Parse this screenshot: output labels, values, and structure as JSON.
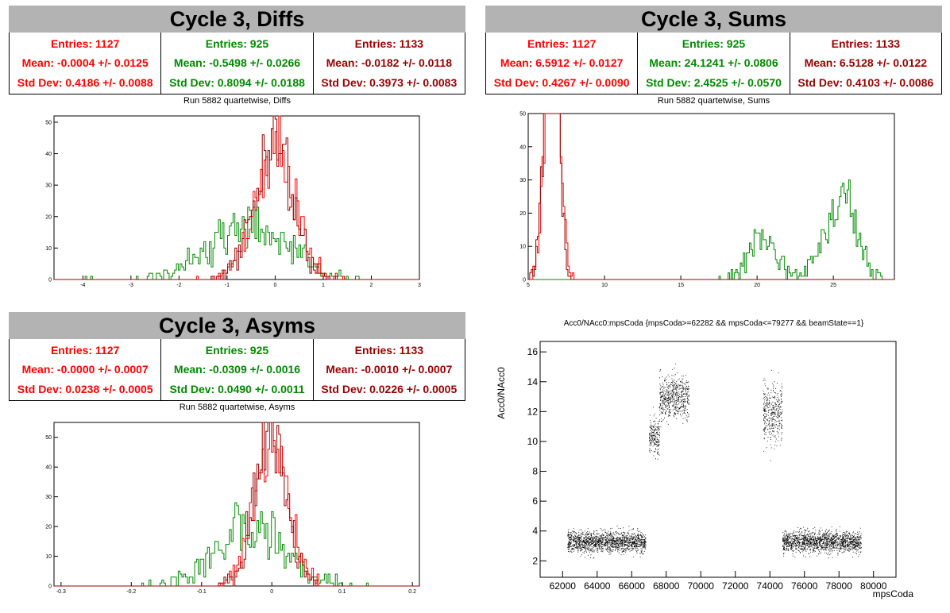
{
  "colors": {
    "red": "#ff0000",
    "green": "#008a00",
    "darkred": "#990000"
  },
  "panels": [
    {
      "title": "Cycle 3, Diffs",
      "subtitle": "Run 5882 quartetwise, Diffs",
      "stats": [
        {
          "color": "red",
          "entries": "Entries: 1127",
          "mean": "Mean: -0.0004 +/- 0.0125",
          "std": "Std Dev: 0.4186 +/- 0.0088"
        },
        {
          "color": "green",
          "entries": "Entries: 925",
          "mean": "Mean: -0.5498 +/- 0.0266",
          "std": "Std Dev: 0.8094 +/- 0.0188"
        },
        {
          "color": "darkred",
          "entries": "Entries: 1133",
          "mean": "Mean: -0.0182 +/- 0.0118",
          "std": "Std Dev: 0.3973 +/- 0.0083"
        }
      ]
    },
    {
      "title": "Cycle 3, Sums",
      "subtitle": "Run 5882 quartetwise, Sums",
      "stats": [
        {
          "color": "red",
          "entries": "Entries: 1127",
          "mean": "Mean: 6.5912 +/- 0.0127",
          "std": "Std Dev: 0.4267 +/- 0.0090"
        },
        {
          "color": "green",
          "entries": "Entries: 925",
          "mean": "Mean: 24.1241 +/- 0.0806",
          "std": "Std Dev: 2.4525 +/- 0.0570"
        },
        {
          "color": "darkred",
          "entries": "Entries: 1133",
          "mean": "Mean: 6.5128 +/- 0.0122",
          "std": "Std Dev: 0.4103 +/- 0.0086"
        }
      ]
    },
    {
      "title": "Cycle 3, Asyms",
      "subtitle": "Run 5882 quartetwise, Asyms",
      "stats": [
        {
          "color": "red",
          "entries": "Entries: 1127",
          "mean": "Mean: -0.0000 +/- 0.0007",
          "std": "Std Dev: 0.0238 +/- 0.0005"
        },
        {
          "color": "green",
          "entries": "Entries: 925",
          "mean": "Mean: -0.0309 +/- 0.0016",
          "std": "Std Dev: 0.0490 +/- 0.0011"
        },
        {
          "color": "darkred",
          "entries": "Entries: 1133",
          "mean": "Mean: -0.0010 +/- 0.0007",
          "std": "Std Dev: 0.0226 +/- 0.0005"
        }
      ]
    }
  ],
  "chart_data": [
    {
      "type": "histogram",
      "name": "diffs",
      "xlim": [
        -4.6,
        3
      ],
      "ylim": [
        0,
        52
      ],
      "xticks": [
        -4,
        -3,
        -2,
        -1,
        0,
        1,
        2,
        3
      ],
      "yticks": [
        0,
        10,
        20,
        30,
        40,
        50
      ],
      "series": [
        {
          "color": "green",
          "mean": -0.55,
          "std": 0.81,
          "entries": 925
        },
        {
          "color": "red",
          "mean": 0.0,
          "std": 0.42,
          "entries": 1127
        },
        {
          "color": "darkred",
          "mean": -0.018,
          "std": 0.4,
          "entries": 1133
        }
      ]
    },
    {
      "type": "histogram",
      "name": "sums",
      "xlim": [
        5,
        29
      ],
      "ylim": [
        0,
        50
      ],
      "xticks": [
        5,
        10,
        15,
        20,
        25
      ],
      "yticks": [
        0,
        10,
        20,
        30,
        40,
        50
      ],
      "series": [
        {
          "color": "green",
          "components": [
            {
              "mean": 20.5,
              "std": 1.0,
              "weight": 0.3
            },
            {
              "mean": 25.5,
              "std": 1.0,
              "weight": 0.7
            }
          ],
          "entries": 925
        },
        {
          "color": "red",
          "mean": 6.59,
          "std": 0.43,
          "entries": 1127
        },
        {
          "color": "darkred",
          "mean": 6.51,
          "std": 0.41,
          "entries": 1133
        }
      ]
    },
    {
      "type": "histogram",
      "name": "asyms",
      "xlim": [
        -0.31,
        0.21
      ],
      "ylim": [
        0,
        55
      ],
      "xticks": [
        -0.3,
        -0.2,
        -0.1,
        0,
        0.1,
        0.2
      ],
      "yticks": [
        0,
        10,
        20,
        30,
        40,
        50
      ],
      "series": [
        {
          "color": "green",
          "mean": -0.031,
          "std": 0.049,
          "entries": 925
        },
        {
          "color": "red",
          "mean": 0.0,
          "std": 0.024,
          "entries": 1127
        },
        {
          "color": "darkred",
          "mean": -0.001,
          "std": 0.023,
          "entries": 1133
        }
      ]
    },
    {
      "type": "scatter",
      "name": "acc0",
      "title": "Acc0/NAcc0:mpsCoda {mpsCoda>=62282 && mpsCoda<=79277 && beamState==1}",
      "xlabel": "mpsCoda",
      "ylabel": "Acc0/NAcc0",
      "xlim": [
        60700,
        81300
      ],
      "ylim": [
        0.9,
        16.7
      ],
      "xticks": [
        62000,
        64000,
        66000,
        68000,
        70000,
        72000,
        74000,
        76000,
        78000,
        80000
      ],
      "yticks": [
        2,
        4,
        6,
        8,
        10,
        12,
        14,
        16
      ],
      "clusters": [
        {
          "x": [
            62282,
            66800
          ],
          "y": [
            3.3
          ],
          "spread": 0.35
        },
        {
          "x": [
            67000,
            67600
          ],
          "y": [
            10.4
          ],
          "spread": 0.6
        },
        {
          "x": [
            67600,
            69300
          ],
          "y": [
            13.0
          ],
          "spread": 0.7
        },
        {
          "x": [
            73600,
            74700
          ],
          "y": [
            12.0
          ],
          "spread": 1.0
        },
        {
          "x": [
            74700,
            79277
          ],
          "y": [
            3.3
          ],
          "spread": 0.35
        }
      ]
    }
  ]
}
